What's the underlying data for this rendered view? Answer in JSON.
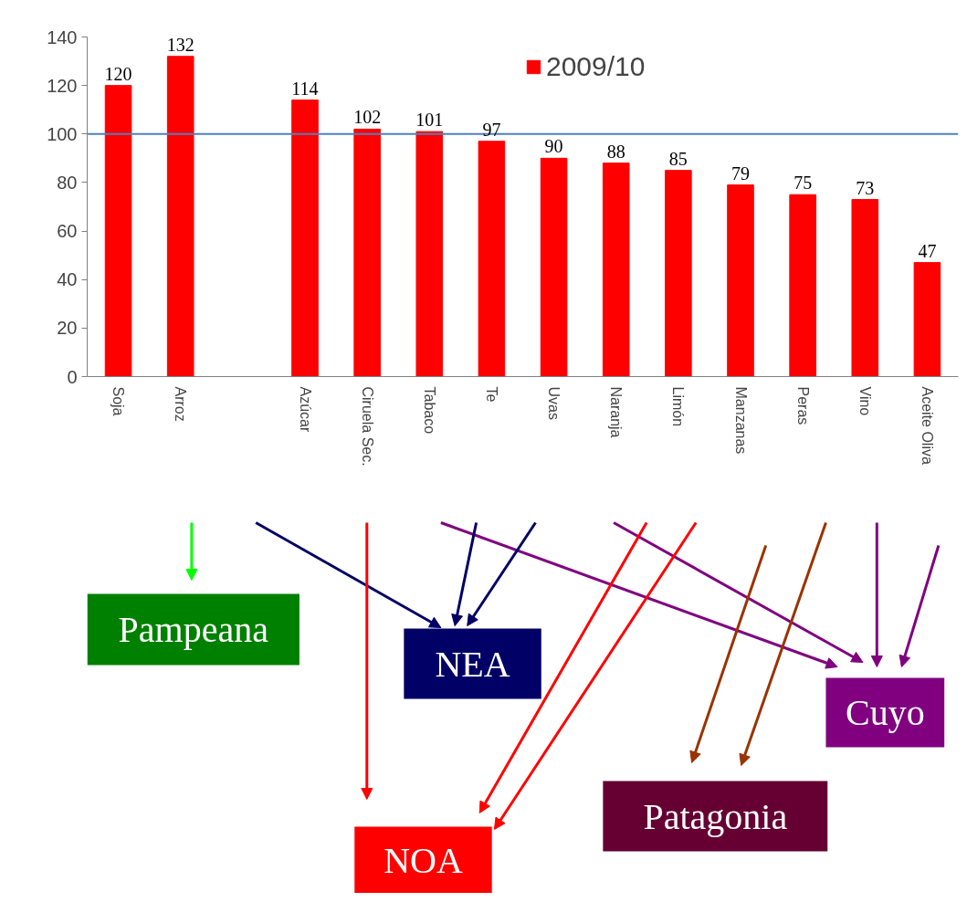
{
  "chart_data": {
    "type": "bar",
    "categories": [
      "Soja",
      "Arroz",
      null,
      "Azúcar",
      "Ciruela Sec.",
      "Tabaco",
      "Te",
      "Uvas",
      "Naranja",
      "Limón",
      "Manzanas",
      "Peras",
      "Vino",
      "Aceite Oliva"
    ],
    "series": [
      {
        "name": "2009/10",
        "color": "#ff0000",
        "values": [
          120,
          132,
          null,
          114,
          102,
          101,
          97,
          90,
          88,
          85,
          79,
          75,
          73,
          47
        ]
      }
    ],
    "data_labels": true,
    "ylim": [
      0,
      140
    ],
    "yticks": [
      0,
      20,
      40,
      60,
      80,
      100,
      120,
      140
    ],
    "grid": false,
    "legend": "top",
    "ref_lines": [
      {
        "axis": "y",
        "value": 100,
        "color": "#4f81bd"
      }
    ],
    "annotations": [
      "Pampeana",
      "NEA",
      "Cuyo",
      "Patagonia",
      "NOA"
    ]
  }
}
